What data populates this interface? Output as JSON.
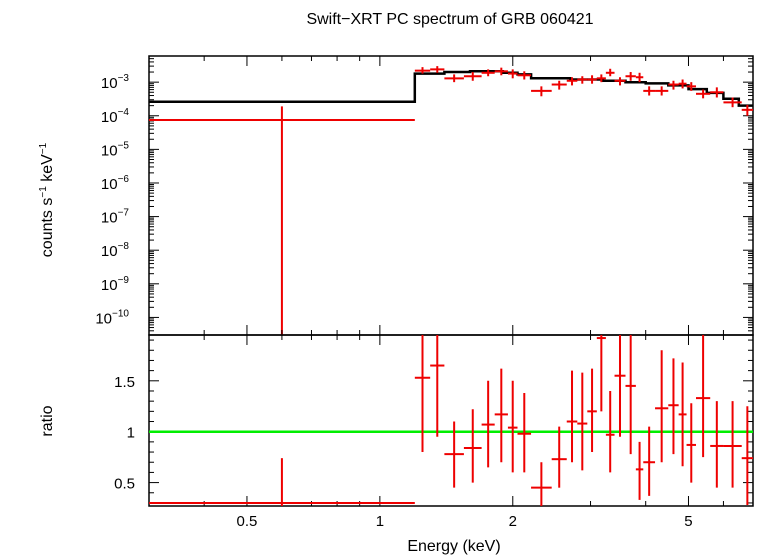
{
  "chart_data": [
    {
      "type": "scatter",
      "panel": "spectrum",
      "title": "Swift−XRT PC spectrum of GRB 060421",
      "ylabel": {
        "base": "counts s",
        "exp1": "−1",
        "mid": " keV",
        "exp2": "−1"
      },
      "xscale": "log",
      "yscale": "log",
      "xlim": [
        0.3,
        7.0
      ],
      "ylim": [
        3e-11,
        0.006
      ],
      "yticks": [
        {
          "v": 0.001,
          "exp": "−3"
        },
        {
          "v": 0.0001,
          "exp": "−4"
        },
        {
          "v": 1e-05,
          "exp": "−5"
        },
        {
          "v": 1e-06,
          "exp": "−6"
        },
        {
          "v": 1e-07,
          "exp": "−7"
        },
        {
          "v": 1e-08,
          "exp": "−8"
        },
        {
          "v": 1e-09,
          "exp": "−9"
        },
        {
          "v": 1e-10,
          "exp": "−10"
        }
      ],
      "tick_base": "10",
      "data_color": "#ee0000",
      "model_color": "#000000",
      "data": [
        {
          "xlo": 0.3,
          "xhi": 1.2,
          "y": 7.5e-05,
          "ylo": 1e-12,
          "yhi": 0.00019
        },
        {
          "xlo": 1.2,
          "xhi": 1.3,
          "y": 0.0022,
          "ylo": 0.0018,
          "yhi": 0.0028
        },
        {
          "xlo": 1.3,
          "xhi": 1.4,
          "y": 0.0024,
          "ylo": 0.0019,
          "yhi": 0.003
        },
        {
          "xlo": 1.4,
          "xhi": 1.55,
          "y": 0.0013,
          "ylo": 0.001,
          "yhi": 0.0017
        },
        {
          "xlo": 1.55,
          "xhi": 1.7,
          "y": 0.0015,
          "ylo": 0.0011,
          "yhi": 0.002
        },
        {
          "xlo": 1.7,
          "xhi": 1.82,
          "y": 0.0019,
          "ylo": 0.0015,
          "yhi": 0.0024
        },
        {
          "xlo": 1.82,
          "xhi": 1.95,
          "y": 0.0021,
          "ylo": 0.0016,
          "yhi": 0.0027
        },
        {
          "xlo": 1.95,
          "xhi": 2.05,
          "y": 0.0018,
          "ylo": 0.0013,
          "yhi": 0.0024
        },
        {
          "xlo": 2.05,
          "xhi": 2.2,
          "y": 0.0016,
          "ylo": 0.0012,
          "yhi": 0.0021
        },
        {
          "xlo": 2.2,
          "xhi": 2.45,
          "y": 0.00055,
          "ylo": 0.00038,
          "yhi": 0.00075
        },
        {
          "xlo": 2.45,
          "xhi": 2.65,
          "y": 0.00085,
          "ylo": 0.0006,
          "yhi": 0.0011
        },
        {
          "xlo": 2.65,
          "xhi": 2.8,
          "y": 0.0011,
          "ylo": 0.0008,
          "yhi": 0.0014
        },
        {
          "xlo": 2.8,
          "xhi": 2.95,
          "y": 0.0012,
          "ylo": 0.0009,
          "yhi": 0.0015
        },
        {
          "xlo": 2.95,
          "xhi": 3.1,
          "y": 0.0012,
          "ylo": 0.0009,
          "yhi": 0.0016
        },
        {
          "xlo": 3.1,
          "xhi": 3.25,
          "y": 0.0013,
          "ylo": 0.001,
          "yhi": 0.0017
        },
        {
          "xlo": 3.25,
          "xhi": 3.4,
          "y": 0.0019,
          "ylo": 0.0015,
          "yhi": 0.0025
        },
        {
          "xlo": 3.4,
          "xhi": 3.6,
          "y": 0.0011,
          "ylo": 0.0008,
          "yhi": 0.0014
        },
        {
          "xlo": 3.6,
          "xhi": 3.8,
          "y": 0.0015,
          "ylo": 0.0011,
          "yhi": 0.002
        },
        {
          "xlo": 3.8,
          "xhi": 3.95,
          "y": 0.0014,
          "ylo": 0.001,
          "yhi": 0.0019
        },
        {
          "xlo": 3.95,
          "xhi": 4.2,
          "y": 0.00055,
          "ylo": 0.0004,
          "yhi": 0.00075
        },
        {
          "xlo": 4.2,
          "xhi": 4.5,
          "y": 0.00055,
          "ylo": 0.0004,
          "yhi": 0.00075
        },
        {
          "xlo": 4.5,
          "xhi": 4.75,
          "y": 0.00085,
          "ylo": 0.0006,
          "yhi": 0.0011
        },
        {
          "xlo": 4.75,
          "xhi": 4.95,
          "y": 0.0009,
          "ylo": 0.00065,
          "yhi": 0.0012
        },
        {
          "xlo": 4.95,
          "xhi": 5.2,
          "y": 0.00075,
          "ylo": 0.00055,
          "yhi": 0.001
        },
        {
          "xlo": 5.2,
          "xhi": 5.6,
          "y": 0.00045,
          "ylo": 0.00033,
          "yhi": 0.0006
        },
        {
          "xlo": 5.6,
          "xhi": 6.0,
          "y": 0.0005,
          "ylo": 0.00035,
          "yhi": 0.0007
        },
        {
          "xlo": 6.0,
          "xhi": 6.6,
          "y": 0.00025,
          "ylo": 0.00018,
          "yhi": 0.00035
        },
        {
          "xlo": 6.6,
          "xhi": 7.0,
          "y": 0.00015,
          "ylo": 0.0001,
          "yhi": 0.00021
        }
      ],
      "model": [
        [
          0.3,
          0.00026
        ],
        [
          1.2,
          0.00026
        ],
        [
          1.2,
          0.0018
        ],
        [
          1.4,
          0.0018
        ],
        [
          1.4,
          0.002
        ],
        [
          1.6,
          0.002
        ],
        [
          1.6,
          0.0021
        ],
        [
          1.9,
          0.0021
        ],
        [
          1.9,
          0.0019
        ],
        [
          2.05,
          0.0019
        ],
        [
          2.05,
          0.0017
        ],
        [
          2.2,
          0.0017
        ],
        [
          2.2,
          0.0013
        ],
        [
          2.7,
          0.0013
        ],
        [
          2.7,
          0.0012
        ],
        [
          3.2,
          0.0012
        ],
        [
          3.2,
          0.0011
        ],
        [
          3.6,
          0.0011
        ],
        [
          3.6,
          0.001
        ],
        [
          4.0,
          0.001
        ],
        [
          4.0,
          0.00092
        ],
        [
          4.5,
          0.00092
        ],
        [
          4.5,
          0.0008
        ],
        [
          5.0,
          0.0008
        ],
        [
          5.0,
          0.00062
        ],
        [
          5.5,
          0.00062
        ],
        [
          5.5,
          0.00048
        ],
        [
          6.0,
          0.00048
        ],
        [
          6.0,
          0.00032
        ],
        [
          6.5,
          0.00032
        ],
        [
          6.5,
          0.0002
        ],
        [
          7.0,
          0.0002
        ]
      ]
    },
    {
      "type": "scatter",
      "panel": "ratio",
      "ylabel": "ratio",
      "xlabel": "Energy (keV)",
      "xscale": "log",
      "xlim": [
        0.3,
        7.0
      ],
      "ylim": [
        0.27,
        1.95
      ],
      "xticks": [
        {
          "v": 0.5,
          "label": "0.5"
        },
        {
          "v": 1,
          "label": "1"
        },
        {
          "v": 2,
          "label": "2"
        },
        {
          "v": 5,
          "label": "5"
        }
      ],
      "yticks": [
        {
          "v": 0.5,
          "label": "0.5"
        },
        {
          "v": 1,
          "label": "1"
        },
        {
          "v": 1.5,
          "label": "1.5"
        }
      ],
      "reference_line": 1,
      "reference_color": "#00ee00",
      "data_color": "#ee0000",
      "data": [
        {
          "xlo": 0.3,
          "xhi": 1.2,
          "y": 0.3,
          "ylo": 0.27,
          "yhi": 0.74
        },
        {
          "xlo": 1.2,
          "xhi": 1.3,
          "y": 1.53,
          "ylo": 0.8,
          "yhi": 1.95
        },
        {
          "xlo": 1.3,
          "xhi": 1.4,
          "y": 1.65,
          "ylo": 0.95,
          "yhi": 1.95
        },
        {
          "xlo": 1.4,
          "xhi": 1.55,
          "y": 0.78,
          "ylo": 0.45,
          "yhi": 1.1
        },
        {
          "xlo": 1.55,
          "xhi": 1.7,
          "y": 0.84,
          "ylo": 0.5,
          "yhi": 1.22
        },
        {
          "xlo": 1.7,
          "xhi": 1.82,
          "y": 1.07,
          "ylo": 0.65,
          "yhi": 1.5
        },
        {
          "xlo": 1.82,
          "xhi": 1.95,
          "y": 1.17,
          "ylo": 0.7,
          "yhi": 1.62
        },
        {
          "xlo": 1.95,
          "xhi": 2.05,
          "y": 1.04,
          "ylo": 0.6,
          "yhi": 1.5
        },
        {
          "xlo": 2.05,
          "xhi": 2.2,
          "y": 0.98,
          "ylo": 0.6,
          "yhi": 1.38
        },
        {
          "xlo": 2.2,
          "xhi": 2.45,
          "y": 0.45,
          "ylo": 0.27,
          "yhi": 0.7
        },
        {
          "xlo": 2.45,
          "xhi": 2.65,
          "y": 0.73,
          "ylo": 0.45,
          "yhi": 1.05
        },
        {
          "xlo": 2.65,
          "xhi": 2.8,
          "y": 1.1,
          "ylo": 0.7,
          "yhi": 1.6
        },
        {
          "xlo": 2.8,
          "xhi": 2.95,
          "y": 1.08,
          "ylo": 0.62,
          "yhi": 1.58
        },
        {
          "xlo": 2.95,
          "xhi": 3.1,
          "y": 1.2,
          "ylo": 0.8,
          "yhi": 1.62
        },
        {
          "xlo": 3.1,
          "xhi": 3.25,
          "y": 1.92,
          "ylo": 1.2,
          "yhi": 1.95
        },
        {
          "xlo": 3.25,
          "xhi": 3.4,
          "y": 0.97,
          "ylo": 0.6,
          "yhi": 1.4
        },
        {
          "xlo": 3.4,
          "xhi": 3.6,
          "y": 1.55,
          "ylo": 0.95,
          "yhi": 1.95
        },
        {
          "xlo": 3.6,
          "xhi": 3.8,
          "y": 1.45,
          "ylo": 0.78,
          "yhi": 1.95
        },
        {
          "xlo": 3.8,
          "xhi": 3.95,
          "y": 0.63,
          "ylo": 0.33,
          "yhi": 0.9
        },
        {
          "xlo": 3.95,
          "xhi": 4.2,
          "y": 0.7,
          "ylo": 0.37,
          "yhi": 1.05
        },
        {
          "xlo": 4.2,
          "xhi": 4.5,
          "y": 1.23,
          "ylo": 0.7,
          "yhi": 1.8
        },
        {
          "xlo": 4.5,
          "xhi": 4.75,
          "y": 1.26,
          "ylo": 0.78,
          "yhi": 1.72
        },
        {
          "xlo": 4.75,
          "xhi": 4.95,
          "y": 1.17,
          "ylo": 0.66,
          "yhi": 1.68
        },
        {
          "xlo": 4.95,
          "xhi": 5.2,
          "y": 0.87,
          "ylo": 0.5,
          "yhi": 1.28
        },
        {
          "xlo": 5.2,
          "xhi": 5.6,
          "y": 1.33,
          "ylo": 0.75,
          "yhi": 1.95
        },
        {
          "xlo": 5.6,
          "xhi": 6.0,
          "y": 0.86,
          "ylo": 0.45,
          "yhi": 1.3
        },
        {
          "xlo": 6.0,
          "xhi": 6.6,
          "y": 0.86,
          "ylo": 0.45,
          "yhi": 1.3
        },
        {
          "xlo": 6.6,
          "xhi": 7.0,
          "y": 0.74,
          "ylo": 0.28,
          "yhi": 1.25
        }
      ]
    }
  ]
}
